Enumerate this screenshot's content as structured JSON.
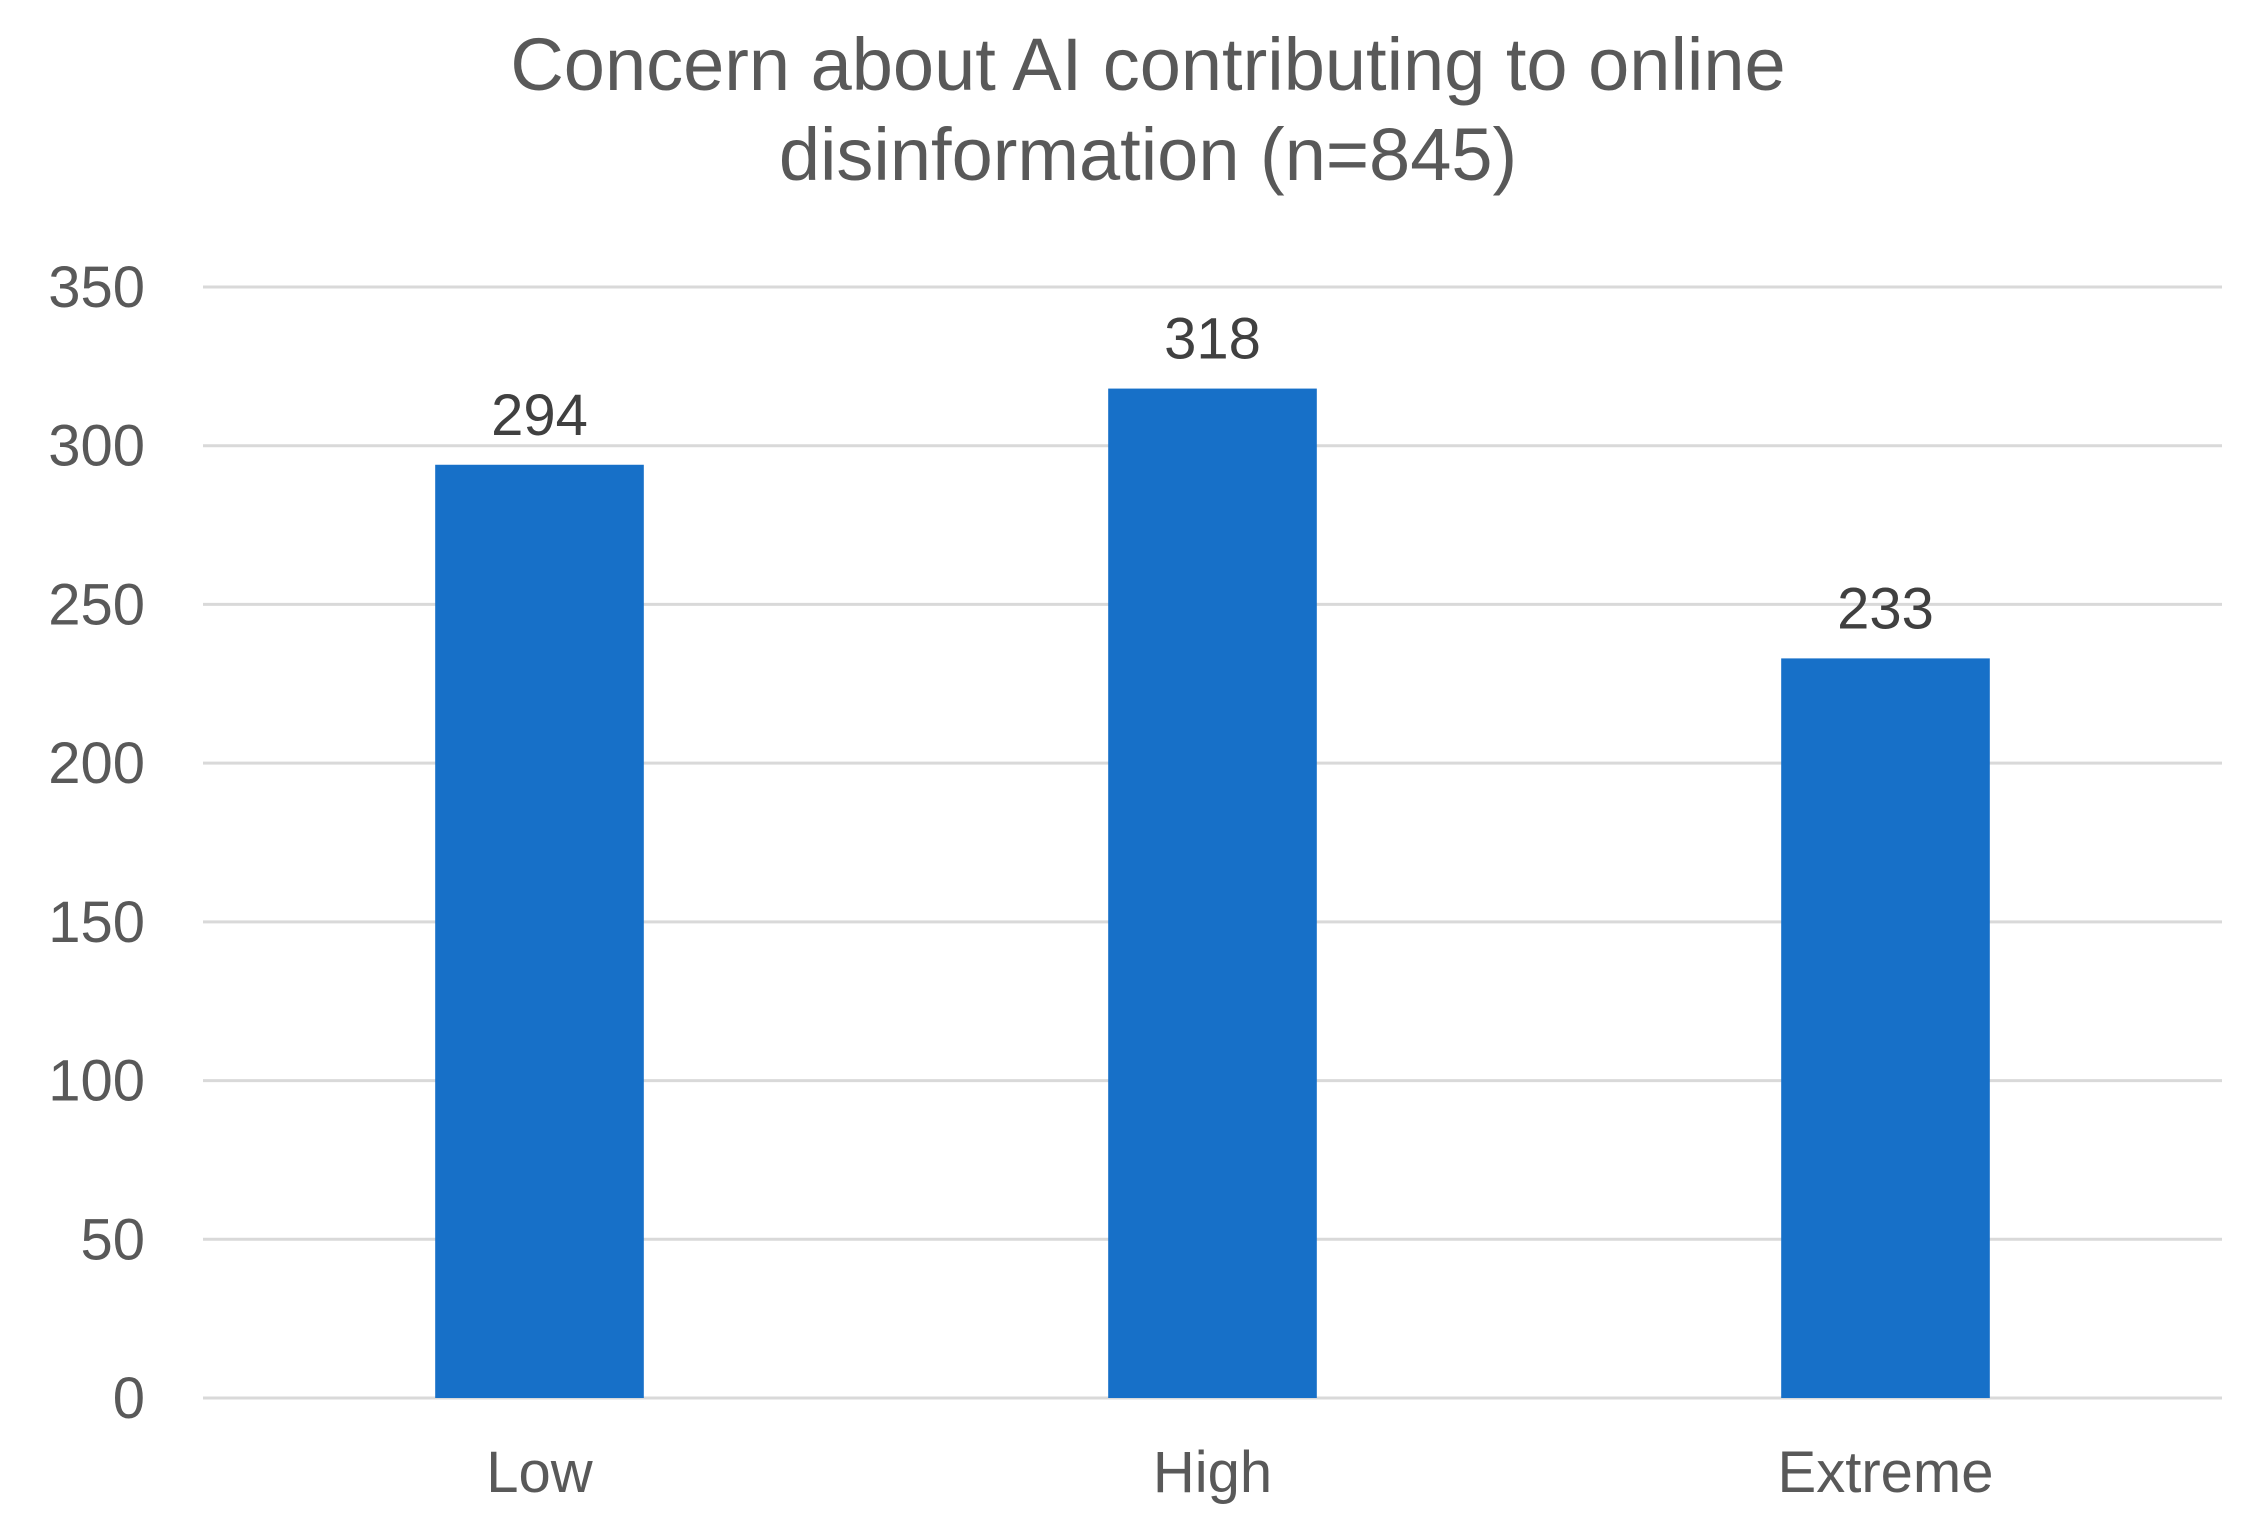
{
  "chart_data": {
    "type": "bar",
    "title_lines": [
      "Concern about AI contributing to online",
      "disinformation (n=845)"
    ],
    "categories": [
      "Low",
      "High",
      "Extreme"
    ],
    "values": [
      294,
      318,
      233
    ],
    "data_labels": [
      "294",
      "318",
      "233"
    ],
    "xlabel": "",
    "ylabel": "",
    "ylim": [
      0,
      350
    ],
    "yticks": [
      0,
      50,
      100,
      150,
      200,
      250,
      300,
      350
    ],
    "grid": true,
    "legend": "none",
    "bar_color": "#1770C8"
  }
}
